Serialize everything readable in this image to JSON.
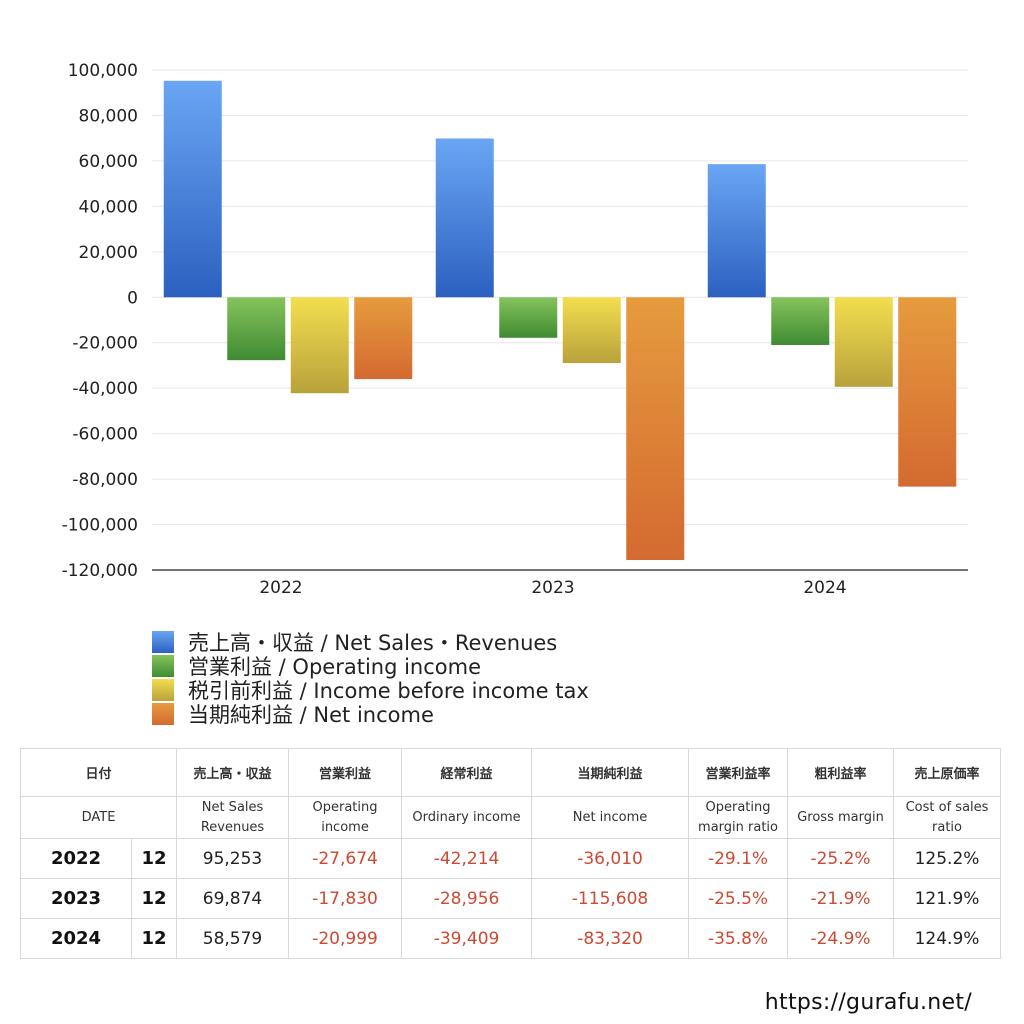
{
  "chart_data": {
    "type": "bar",
    "categories": [
      "2022",
      "2023",
      "2024"
    ],
    "series": [
      {
        "name": "売上高・収益 / Net Sales・Revenues",
        "color_top": "#6aa6f4",
        "color_bottom": "#2c60c0",
        "values": [
          95253,
          69874,
          58579
        ]
      },
      {
        "name": "営業利益 / Operating income",
        "color_top": "#86c35c",
        "color_bottom": "#3f8b33",
        "values": [
          -27674,
          -17830,
          -20999
        ]
      },
      {
        "name": "税引前利益 / Income before income tax",
        "color_top": "#f3de4e",
        "color_bottom": "#b8a23c",
        "values": [
          -42214,
          -28956,
          -39409
        ]
      },
      {
        "name": "当期純利益 / Net income",
        "color_top": "#e69b3e",
        "color_bottom": "#d46a30",
        "values": [
          -36010,
          -115608,
          -83320
        ]
      }
    ],
    "ylim": [
      -120000,
      100000
    ],
    "yticks": [
      100000,
      80000,
      60000,
      40000,
      20000,
      0,
      -20000,
      -40000,
      -60000,
      -80000,
      -100000,
      -120000
    ],
    "ytick_labels": [
      "100,000",
      "80,000",
      "60,000",
      "40,000",
      "20,000",
      "0",
      "-20,000",
      "-40,000",
      "-60,000",
      "-80,000",
      "-100,000",
      "-120,000"
    ],
    "grid": true,
    "legend": "bottom-left"
  },
  "legend": [
    {
      "label": "売上高・収益 / Net Sales・Revenues",
      "color": "#4a86e0"
    },
    {
      "label": "営業利益 / Operating income",
      "color": "#5ea845"
    },
    {
      "label": "税引前利益 / Income before income tax",
      "color": "#dcc445"
    },
    {
      "label": "当期純利益 / Net income",
      "color": "#e08238"
    }
  ],
  "table": {
    "header_jp": {
      "date": "日付",
      "sales": "売上高・収益",
      "op": "営業利益",
      "ord": "経常利益",
      "net": "当期純利益",
      "op_ratio": "営業利益率",
      "gross": "粗利益率",
      "cost": "売上原価率"
    },
    "header_en": {
      "date": "DATE",
      "sales_1": "Net Sales",
      "sales_2": "Revenues",
      "op_1": "Operating",
      "op_2": "income",
      "ord": "Ordinary income",
      "net": "Net income",
      "op_ratio_1": "Operating",
      "op_ratio_2": "margin ratio",
      "gross": "Gross margin",
      "cost_1": "Cost of sales",
      "cost_2": "ratio"
    },
    "rows": [
      {
        "year": "2022",
        "month": "12",
        "sales": "95,253",
        "op": "-27,674",
        "ord": "-42,214",
        "net": "-36,010",
        "op_ratio": "-29.1%",
        "gross": "-25.2%",
        "cost": "125.2%"
      },
      {
        "year": "2023",
        "month": "12",
        "sales": "69,874",
        "op": "-17,830",
        "ord": "-28,956",
        "net": "-115,608",
        "op_ratio": "-25.5%",
        "gross": "-21.9%",
        "cost": "121.9%"
      },
      {
        "year": "2024",
        "month": "12",
        "sales": "58,579",
        "op": "-20,999",
        "ord": "-39,409",
        "net": "-83,320",
        "op_ratio": "-35.8%",
        "gross": "-24.9%",
        "cost": "124.9%"
      }
    ]
  },
  "site_url": "https://gurafu.net/"
}
